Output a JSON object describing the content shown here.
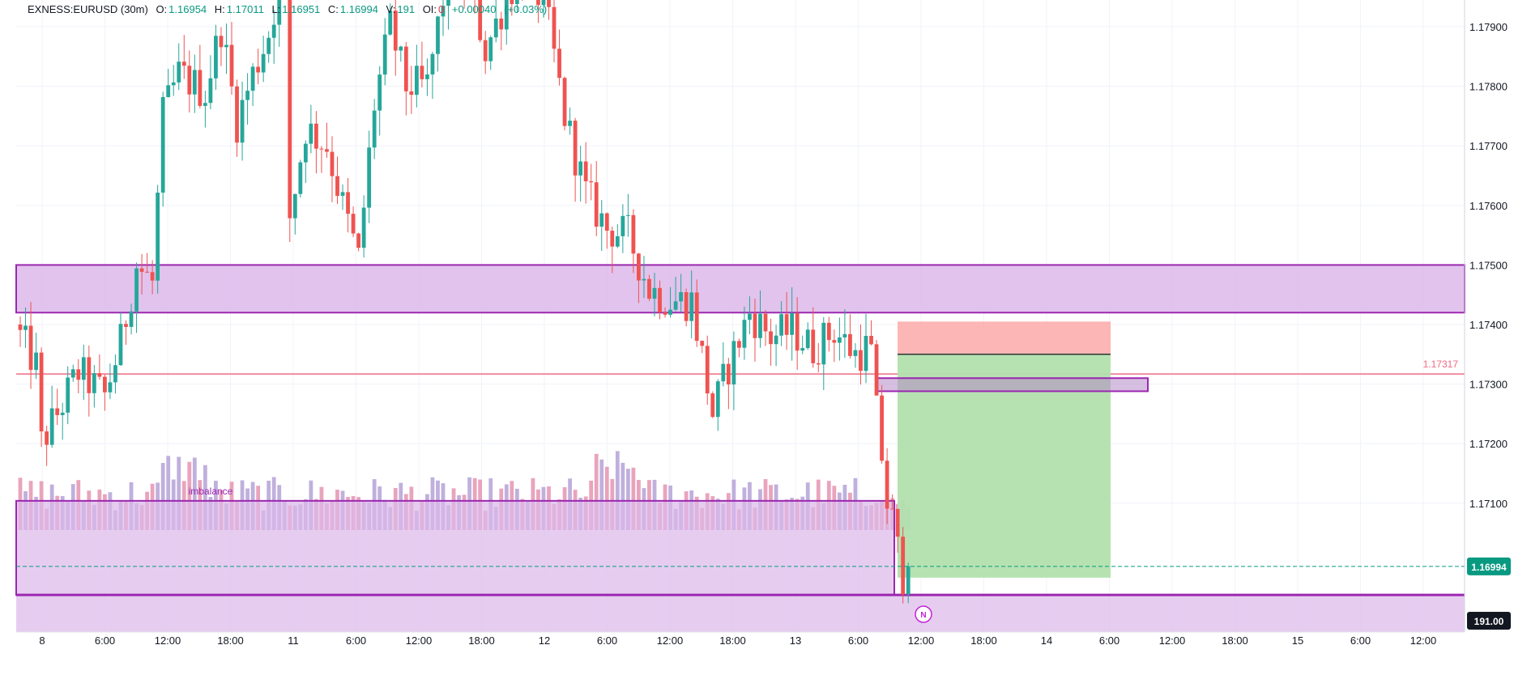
{
  "header": {
    "symbol": "EXNESS:EURUSD (30m)",
    "o_label": "O:",
    "o_value": "1.16954",
    "h_label": "H:",
    "h_value": "1.17011",
    "l_label": "L:",
    "l_value": "1.16951",
    "c_label": "C:",
    "c_value": "1.16994",
    "v_label": "V:",
    "v_value": "191",
    "oi_label": "OI:",
    "oi_value": "0",
    "change": "+0.00040",
    "change_pct": "(+0.03%)"
  },
  "colors": {
    "up": "#26a69a",
    "down": "#ef5350",
    "up_volume": "#b9a7d9",
    "down_volume": "#e79ab6",
    "zone_fill": "#dcb8ea",
    "zone_border": "#9c27b0",
    "price_line": "#f06a82",
    "stop_fill": "#fcaeae",
    "target_fill": "#b2e0ae",
    "last_price": "#089981"
  },
  "chart_data": {
    "type": "candlestick",
    "symbol": "EXNESS:EURUSD",
    "timeframe": "30m",
    "ylim": [
      1.1687,
      1.1795
    ],
    "y_ticks": [
      "1.17900",
      "1.17800",
      "1.17700",
      "1.17600",
      "1.17500",
      "1.17400",
      "1.17300",
      "1.17200",
      "1.17100"
    ],
    "x_ticks": [
      "8",
      "6:00",
      "12:00",
      "18:00",
      "11",
      "6:00",
      "12:00",
      "18:00",
      "12",
      "6:00",
      "12:00",
      "18:00",
      "13",
      "6:00",
      "12:00",
      "18:00",
      "14",
      "6:00",
      "12:00",
      "18:00",
      "15",
      "6:00",
      "12:00"
    ],
    "anchors": [
      [
        0,
        1.1738
      ],
      [
        3,
        1.1733
      ],
      [
        4,
        1.172
      ],
      [
        7,
        1.1725
      ],
      [
        11,
        1.1732
      ],
      [
        16,
        1.1728
      ],
      [
        19,
        1.1737
      ],
      [
        22,
        1.175
      ],
      [
        25,
        1.1747
      ],
      [
        27,
        1.1775
      ],
      [
        30,
        1.1782
      ],
      [
        35,
        1.1779
      ],
      [
        38,
        1.179
      ],
      [
        41,
        1.1774
      ],
      [
        44,
        1.1782
      ],
      [
        47,
        1.1789
      ],
      [
        50,
        1.1801
      ],
      [
        51,
        1.1758
      ],
      [
        54,
        1.1773
      ],
      [
        58,
        1.177
      ],
      [
        61,
        1.176
      ],
      [
        64,
        1.1751
      ],
      [
        67,
        1.1777
      ],
      [
        70,
        1.179
      ],
      [
        73,
        1.178
      ],
      [
        77,
        1.178
      ],
      [
        81,
        1.18
      ],
      [
        85,
        1.1797
      ],
      [
        88,
        1.1786
      ],
      [
        92,
        1.1795
      ],
      [
        96,
        1.1801
      ],
      [
        100,
        1.179
      ],
      [
        103,
        1.1775
      ],
      [
        107,
        1.1762
      ],
      [
        111,
        1.1756
      ],
      [
        115,
        1.1755
      ],
      [
        119,
        1.1746
      ],
      [
        123,
        1.1744
      ],
      [
        127,
        1.1744
      ],
      [
        131,
        1.1725
      ],
      [
        134,
        1.1733
      ],
      [
        138,
        1.1742
      ],
      [
        142,
        1.1738
      ],
      [
        146,
        1.1739
      ],
      [
        150,
        1.1736
      ],
      [
        154,
        1.1739
      ],
      [
        158,
        1.1735
      ],
      [
        160,
        1.1736
      ],
      [
        161,
        1.1735
      ],
      [
        162,
        1.1725
      ],
      [
        163,
        1.1718
      ],
      [
        164,
        1.171
      ],
      [
        165,
        1.1707
      ],
      [
        166,
        1.1702
      ],
      [
        167,
        1.1698
      ],
      [
        168,
        1.1699
      ]
    ],
    "last_price": "1.16994",
    "last_volume": "191.00",
    "horizontal_line": "1.17317",
    "zones": [
      {
        "top": 1.175,
        "bottom": 1.1742,
        "text": ""
      },
      {
        "top": 1.17104,
        "bottom": 1.16946,
        "text": "imbalance"
      }
    ],
    "small_box": {
      "top": 1.1731,
      "bottom": 1.17288
    },
    "position": {
      "type": "short",
      "stop": 1.17405,
      "entry": 1.1735,
      "target": 1.16975
    },
    "marker": "N"
  }
}
